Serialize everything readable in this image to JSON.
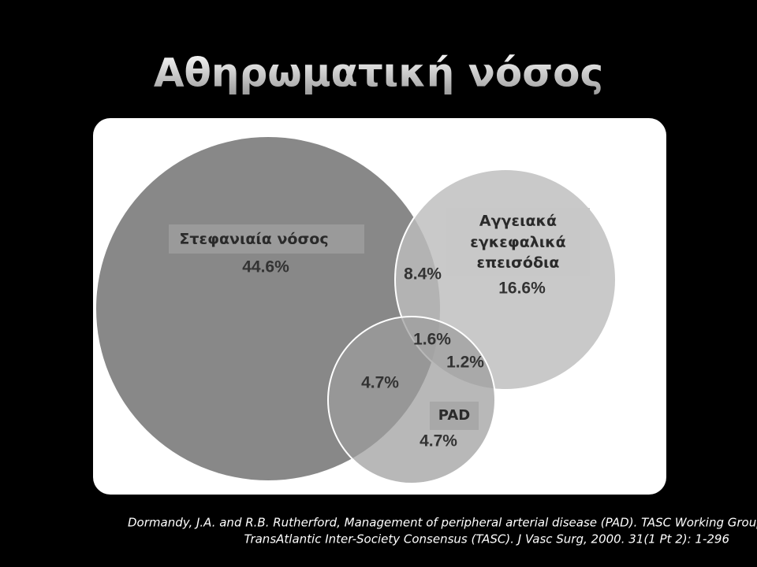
{
  "header": {
    "title": "Αθηρωματική νόσος"
  },
  "diagram": {
    "coronary": {
      "label": "Στεφανιαία νόσος",
      "value": "44.6%"
    },
    "cerebrovascular": {
      "label_lines": [
        "Αγγειακά",
        "εγκεφαλικά",
        "επεισόδια"
      ],
      "value": "16.6%"
    },
    "pad": {
      "label": "PAD",
      "value": "4.7%"
    },
    "overlaps": {
      "coronary_cerebrovascular": "8.4%",
      "all_three": "1.6%",
      "cerebrovascular_pad": "1.2%",
      "coronary_pad": "4.7%"
    }
  },
  "citation": {
    "lines": [
      "Dormandy, J.A. and R.B. Rutherford, Management of peripheral arterial disease (PAD). TASC Working Group.",
      "TransAtlantic Inter-Society Consensus (TASC). J Vasc Surg, 2000. 31(1 Pt 2): 1-296"
    ]
  }
}
